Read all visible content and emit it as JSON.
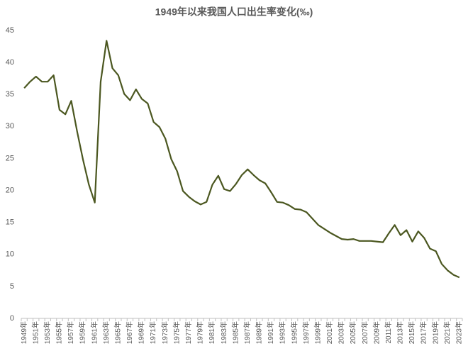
{
  "chart_data": {
    "type": "line",
    "title": "1949年以来我国人口出生率变化(‰)",
    "categories": [
      "1949年",
      null,
      "1951年",
      null,
      "1953年",
      null,
      "1955年",
      null,
      "1957年",
      null,
      "1959年",
      null,
      "1961年",
      null,
      "1963年",
      null,
      "1965年",
      null,
      "1967年",
      null,
      "1969年",
      null,
      "1971年",
      null,
      "1973年",
      null,
      "1975年",
      null,
      "1977年",
      null,
      "1979年",
      null,
      "1981年",
      null,
      "1983年",
      null,
      "1985年",
      null,
      "1987年",
      null,
      "1989年",
      null,
      "1991年",
      null,
      "1993年",
      null,
      "1995年",
      null,
      "1997年",
      null,
      "1999年",
      null,
      "2001年",
      null,
      "2003年",
      null,
      "2005年",
      null,
      "2007年",
      null,
      "2009年",
      null,
      "2011年",
      null,
      "2013年",
      null,
      "2015年",
      null,
      "2017年",
      null,
      "2019年",
      null,
      "2021年",
      null,
      "2023年"
    ],
    "series": [
      {
        "name": "出生率",
        "color": "#4b5720",
        "values": [
          36.0,
          37.0,
          37.8,
          37.0,
          37.0,
          38.0,
          32.6,
          31.9,
          34.0,
          29.2,
          24.8,
          20.9,
          18.1,
          37.0,
          43.4,
          39.1,
          38.0,
          35.1,
          34.1,
          35.8,
          34.3,
          33.6,
          30.7,
          29.9,
          28.1,
          24.9,
          23.0,
          19.9,
          19.0,
          18.3,
          17.8,
          18.2,
          20.9,
          22.3,
          20.2,
          19.9,
          21.0,
          22.4,
          23.3,
          22.4,
          21.6,
          21.1,
          19.7,
          18.2,
          18.1,
          17.7,
          17.1,
          17.0,
          16.6,
          15.6,
          14.6,
          14.0,
          13.4,
          12.9,
          12.4,
          12.3,
          12.4,
          12.1,
          12.1,
          12.1,
          12.0,
          11.9,
          13.3,
          14.6,
          13.0,
          13.8,
          12.0,
          13.6,
          12.6,
          10.9,
          10.5,
          8.5,
          7.5,
          6.8,
          6.4
        ]
      }
    ],
    "ylim": [
      0,
      45
    ],
    "yticks": [
      0,
      5,
      10,
      15,
      20,
      25,
      30,
      35,
      40,
      45
    ],
    "grid": false
  }
}
